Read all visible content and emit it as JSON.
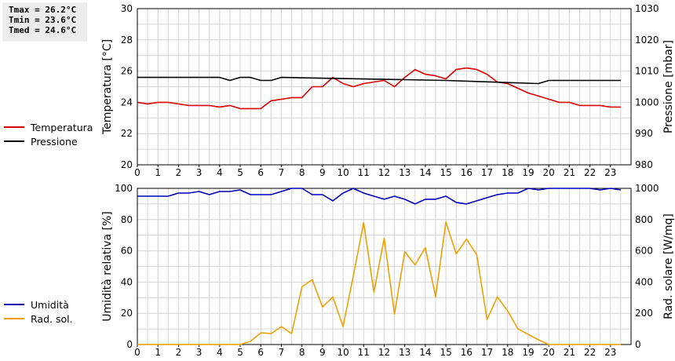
{
  "stats": [
    "Tmax = 26.2°C",
    "Tmin = 23.6°C",
    "Tmed = 24.6°C"
  ],
  "legend_top": [
    {
      "label": "Temperatura",
      "color": "#dd0000"
    },
    {
      "label": "Pressione",
      "color": "#000000"
    }
  ],
  "legend_bottom": [
    {
      "label": "Umidità",
      "color": "#0000bb"
    },
    {
      "label": "Rad. sol.",
      "color": "#f0a000"
    }
  ],
  "chart_data": [
    {
      "type": "line",
      "xlim": [
        0,
        24
      ],
      "xticks": [
        "0",
        "1",
        "2",
        "3",
        "4",
        "5",
        "6",
        "7",
        "8",
        "9",
        "10",
        "11",
        "12",
        "13",
        "14",
        "15",
        "16",
        "17",
        "18",
        "19",
        "20",
        "21",
        "22",
        "23"
      ],
      "ylabel": "Temperatura [°C]",
      "ylim": [
        20,
        30
      ],
      "yticks": [
        "20",
        "22",
        "24",
        "26",
        "28",
        "30"
      ],
      "y2label": "Pressione [mbar]",
      "y2lim": [
        980,
        1030
      ],
      "y2ticks": [
        "980",
        "990",
        "1000",
        "1010",
        "1020",
        "1030"
      ],
      "grid": true,
      "series": [
        {
          "name": "Temperatura",
          "axis": "left",
          "color": "#dd0000",
          "x": [
            0,
            0.5,
            1,
            1.5,
            2,
            2.5,
            3,
            3.5,
            4,
            4.5,
            5,
            5.5,
            6,
            6.5,
            7,
            7.5,
            8,
            8.5,
            9,
            9.5,
            10,
            10.5,
            11,
            11.5,
            12,
            12.5,
            13,
            13.5,
            14,
            14.5,
            15,
            15.5,
            16,
            16.5,
            17,
            17.5,
            18,
            18.5,
            19,
            19.5,
            20,
            20.5,
            21,
            21.5,
            22,
            22.5,
            23,
            23.5
          ],
          "y": [
            24.0,
            23.9,
            24.0,
            24.0,
            23.9,
            23.8,
            23.8,
            23.8,
            23.7,
            23.8,
            23.6,
            23.6,
            23.6,
            24.1,
            24.2,
            24.3,
            24.3,
            25.0,
            25.0,
            25.6,
            25.2,
            25.0,
            25.2,
            25.3,
            25.4,
            25.0,
            25.6,
            26.1,
            25.8,
            25.7,
            25.5,
            26.1,
            26.2,
            26.1,
            25.8,
            25.3,
            25.2,
            24.9,
            24.6,
            24.4,
            24.2,
            24.0,
            24.0,
            23.8,
            23.8,
            23.8,
            23.7,
            23.7
          ]
        },
        {
          "name": "Pressione",
          "axis": "right",
          "color": "#000000",
          "x": [
            0,
            4,
            4.5,
            5,
            5.5,
            6,
            6.5,
            7,
            15,
            19.5,
            20,
            23.5
          ],
          "y": [
            1008,
            1008,
            1007,
            1008,
            1008,
            1007,
            1007,
            1008,
            1007,
            1006,
            1007,
            1007
          ]
        }
      ]
    },
    {
      "type": "line",
      "xlim": [
        0,
        24
      ],
      "xticks": [
        "0",
        "1",
        "2",
        "3",
        "4",
        "5",
        "6",
        "7",
        "8",
        "9",
        "10",
        "11",
        "12",
        "13",
        "14",
        "15",
        "16",
        "17",
        "18",
        "19",
        "20",
        "21",
        "22",
        "23"
      ],
      "ylabel": "Umidità relativa [%]",
      "ylim": [
        0,
        100
      ],
      "yticks": [
        "0",
        "20",
        "40",
        "60",
        "80",
        "100"
      ],
      "y2label": "Rad. solare [W/mq]",
      "y2lim": [
        0,
        1000
      ],
      "y2ticks": [
        "0",
        "200",
        "400",
        "600",
        "800",
        "1000"
      ],
      "grid": true,
      "series": [
        {
          "name": "Umidità",
          "axis": "left",
          "color": "#0000bb",
          "x": [
            0,
            0.5,
            1,
            1.5,
            2,
            2.5,
            3,
            3.5,
            4,
            4.5,
            5,
            5.5,
            6,
            6.5,
            7,
            7.5,
            8,
            8.5,
            9,
            9.5,
            10,
            10.5,
            11,
            11.5,
            12,
            12.5,
            13,
            13.5,
            14,
            14.5,
            15,
            15.5,
            16,
            16.5,
            17,
            17.5,
            18,
            18.5,
            19,
            19.5,
            20,
            20.5,
            21,
            21.5,
            22,
            22.5,
            23,
            23.5
          ],
          "y": [
            95,
            95,
            95,
            95,
            97,
            97,
            98,
            96,
            98,
            98,
            99,
            96,
            96,
            96,
            98,
            100,
            100,
            96,
            96,
            92,
            97,
            100,
            97,
            95,
            93,
            95,
            93,
            90,
            93,
            93,
            95,
            91,
            90,
            92,
            94,
            96,
            97,
            97,
            100,
            99,
            100,
            100,
            100,
            100,
            100,
            99,
            100,
            99
          ]
        },
        {
          "name": "Rad. sol.",
          "axis": "right",
          "color": "#f0a000",
          "x": [
            0,
            0.5,
            1,
            1.5,
            2,
            2.5,
            3,
            3.5,
            4,
            4.5,
            5,
            5.5,
            6,
            6.5,
            7,
            7.5,
            8,
            8.5,
            9,
            9.5,
            10,
            10.5,
            11,
            11.5,
            12,
            12.5,
            13,
            13.5,
            14,
            14.5,
            15,
            15.5,
            16,
            16.5,
            17,
            17.5,
            18,
            18.5,
            19,
            19.5,
            20,
            20.5,
            21,
            21.5,
            22,
            22.5,
            23,
            23.5
          ],
          "y": [
            0,
            0,
            0,
            0,
            0,
            0,
            0,
            0,
            0,
            0,
            0,
            20,
            75,
            70,
            115,
            70,
            370,
            415,
            240,
            305,
            115,
            440,
            780,
            335,
            680,
            195,
            595,
            510,
            620,
            305,
            785,
            580,
            675,
            575,
            160,
            305,
            215,
            100,
            65,
            30,
            0,
            0,
            0,
            0,
            0,
            0,
            0,
            0
          ]
        }
      ]
    }
  ]
}
